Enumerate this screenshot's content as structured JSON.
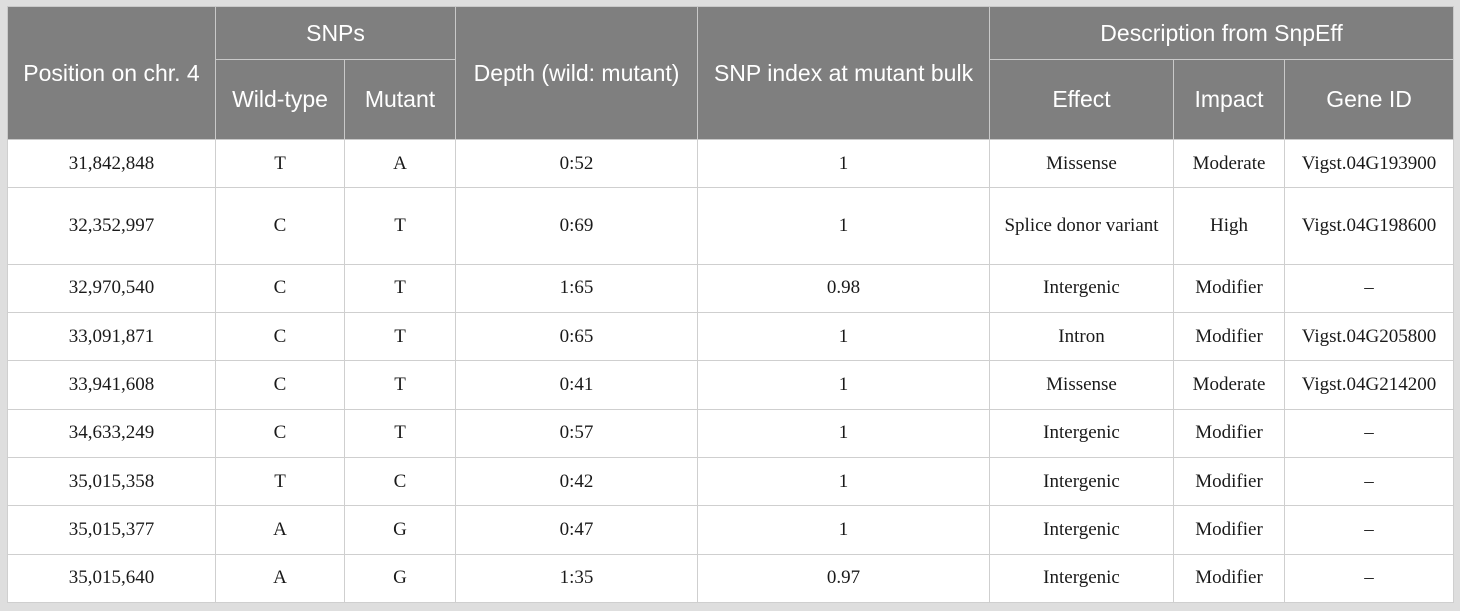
{
  "headers": {
    "position": "Position on chr. 4",
    "snps": "SNPs",
    "wild_type": "Wild-type",
    "mutant": "Mutant",
    "depth": "Depth (wild: mutant)",
    "snp_index": "SNP index at mutant bulk",
    "description": "Description from SnpEff",
    "effect": "Effect",
    "impact": "Impact",
    "gene_id": "Gene ID"
  },
  "rows": [
    {
      "position": "31,842,848",
      "wild": "T",
      "mutant": "A",
      "depth": "0:52",
      "snp_index": "1",
      "effect": "Missense",
      "impact": "Moderate",
      "gene_id": "Vigst.04G193900"
    },
    {
      "position": "32,352,997",
      "wild": "C",
      "mutant": "T",
      "depth": "0:69",
      "snp_index": "1",
      "effect": "Splice donor variant",
      "impact": "High",
      "gene_id": "Vigst.04G198600"
    },
    {
      "position": "32,970,540",
      "wild": "C",
      "mutant": "T",
      "depth": "1:65",
      "snp_index": "0.98",
      "effect": "Intergenic",
      "impact": "Modifier",
      "gene_id": "–"
    },
    {
      "position": "33,091,871",
      "wild": "C",
      "mutant": "T",
      "depth": "0:65",
      "snp_index": "1",
      "effect": "Intron",
      "impact": "Modifier",
      "gene_id": "Vigst.04G205800"
    },
    {
      "position": "33,941,608",
      "wild": "C",
      "mutant": "T",
      "depth": "0:41",
      "snp_index": "1",
      "effect": "Missense",
      "impact": "Moderate",
      "gene_id": "Vigst.04G214200"
    },
    {
      "position": "34,633,249",
      "wild": "C",
      "mutant": "T",
      "depth": "0:57",
      "snp_index": "1",
      "effect": "Intergenic",
      "impact": "Modifier",
      "gene_id": "–"
    },
    {
      "position": "35,015,358",
      "wild": "T",
      "mutant": "C",
      "depth": "0:42",
      "snp_index": "1",
      "effect": "Intergenic",
      "impact": "Modifier",
      "gene_id": "–"
    },
    {
      "position": "35,015,377",
      "wild": "A",
      "mutant": "G",
      "depth": "0:47",
      "snp_index": "1",
      "effect": "Intergenic",
      "impact": "Modifier",
      "gene_id": "–"
    },
    {
      "position": "35,015,640",
      "wild": "A",
      "mutant": "G",
      "depth": "1:35",
      "snp_index": "0.97",
      "effect": "Intergenic",
      "impact": "Modifier",
      "gene_id": "–"
    }
  ]
}
